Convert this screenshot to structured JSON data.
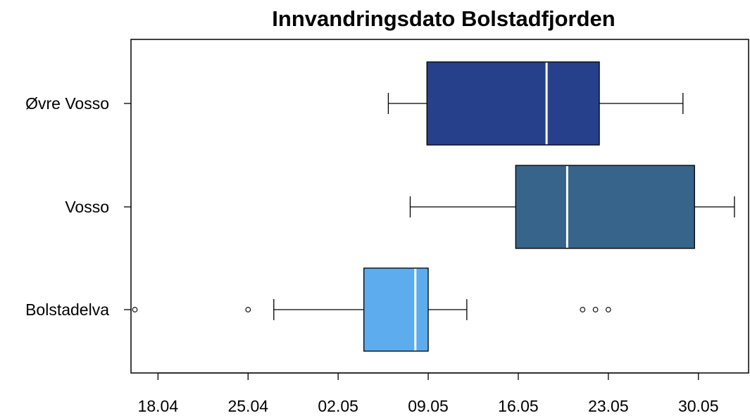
{
  "chart_data": {
    "type": "boxplot",
    "title": "Innvandringsdato Bolstadfjorden",
    "xlabel": "",
    "ylabel": "",
    "orientation": "horizontal",
    "x_axis": {
      "unit": "day of year",
      "range": [
        105.9,
        153.9
      ],
      "ticks": [
        {
          "value": 108,
          "label": "18.04"
        },
        {
          "value": 115,
          "label": "25.04"
        },
        {
          "value": 122,
          "label": "02.05"
        },
        {
          "value": 129,
          "label": "09.05"
        },
        {
          "value": 136,
          "label": "16.05"
        },
        {
          "value": 143,
          "label": "23.05"
        },
        {
          "value": 150,
          "label": "30.05"
        }
      ]
    },
    "categories": [
      "Øvre Vosso",
      "Vosso",
      "Bolstadelva"
    ],
    "series": [
      {
        "category": "Øvre Vosso",
        "color": "#27408b",
        "whisker_low": 125.9,
        "q1": 128.9,
        "median": 138.2,
        "q3": 142.3,
        "whisker_high": 148.8,
        "outliers": []
      },
      {
        "category": "Vosso",
        "color": "#36648b",
        "whisker_low": 127.6,
        "q1": 135.8,
        "median": 139.8,
        "q3": 149.7,
        "whisker_high": 152.8,
        "outliers": []
      },
      {
        "category": "Bolstadelva",
        "color": "#5cacee",
        "whisker_low": 117.0,
        "q1": 124.0,
        "median": 128.0,
        "q3": 129.0,
        "whisker_high": 132.0,
        "outliers": [
          106.2,
          115.0,
          141.0,
          142.0,
          143.0
        ]
      }
    ],
    "grid": false,
    "legend": "none"
  }
}
